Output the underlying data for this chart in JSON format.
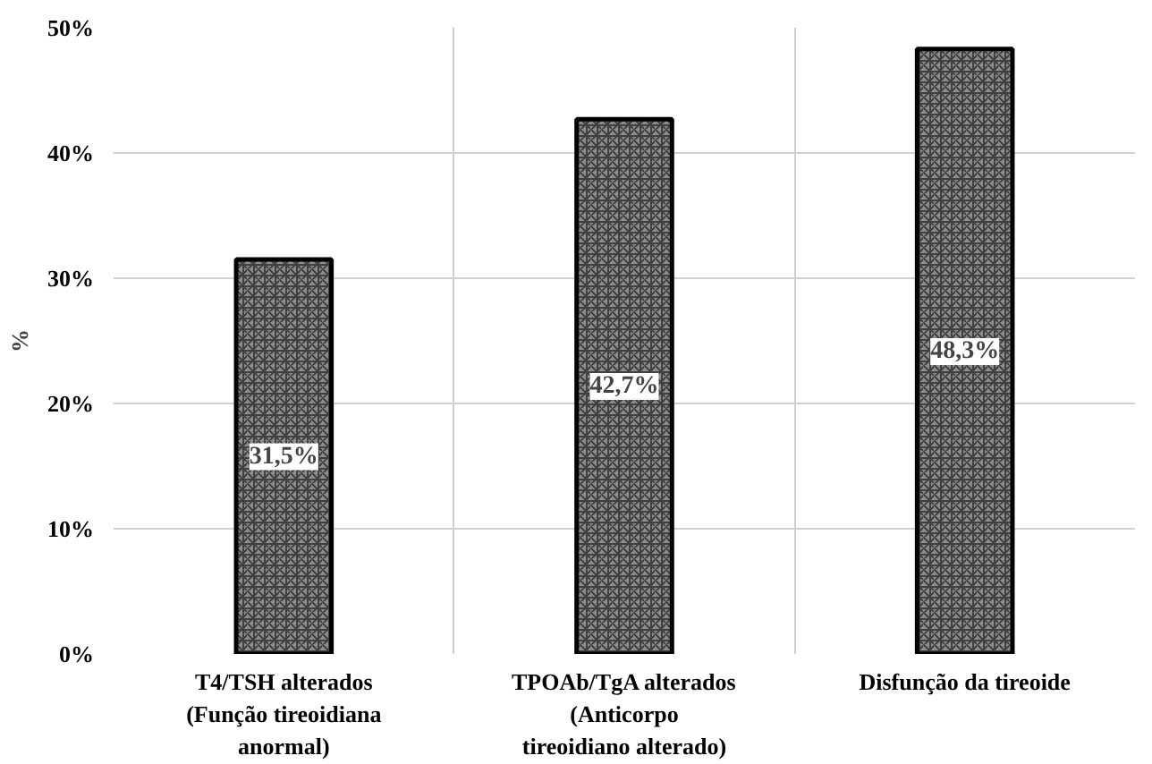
{
  "chart_data": {
    "type": "bar",
    "ylabel": "%",
    "categories": [
      "T4/TSH alterados\n(Função tireoidiana\nanormal)",
      "TPOAb/TgA alterados\n(Anticorpo\ntireoidiano alterado)",
      "Disfunção da tireoide"
    ],
    "values": [
      31.5,
      42.7,
      48.3
    ],
    "color": "#8c8c8c",
    "value_labels": [
      "31,5%",
      "42,7%",
      "48,3%"
    ],
    "ylim": [
      0,
      50
    ],
    "yticks": [
      {
        "value": 0,
        "label": "0%"
      },
      {
        "value": 10,
        "label": "10%"
      },
      {
        "value": 20,
        "label": "20%"
      },
      {
        "value": 30,
        "label": "30%"
      },
      {
        "value": 40,
        "label": "40%"
      },
      {
        "value": 50,
        "label": "50%"
      }
    ],
    "grid": true
  }
}
